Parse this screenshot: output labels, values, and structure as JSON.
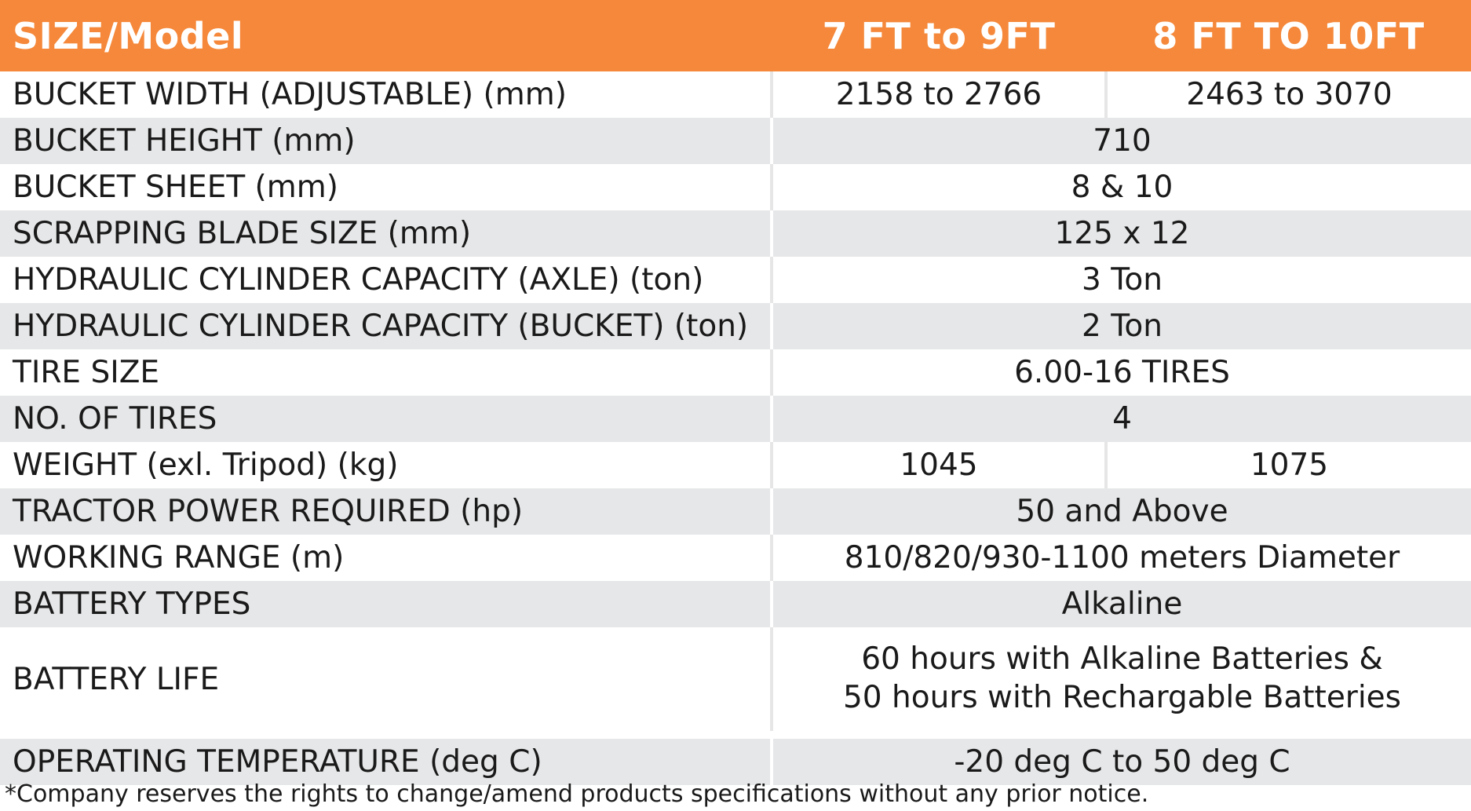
{
  "header": {
    "label": "SIZE/Model",
    "models": [
      "7 FT to 9FT",
      "8 FT TO 10FT"
    ]
  },
  "rows": [
    {
      "label": "BUCKET WIDTH (ADJUSTABLE) (mm)",
      "values": [
        "2158 to 2766",
        "2463 to 3070"
      ]
    },
    {
      "label": "BUCKET HEIGHT (mm)",
      "value": "710"
    },
    {
      "label": "BUCKET SHEET (mm)",
      "value": "8 & 10"
    },
    {
      "label": "SCRAPPING BLADE SIZE (mm)",
      "value": "125 x 12"
    },
    {
      "label": "HYDRAULIC CYLINDER CAPACITY (AXLE) (ton)",
      "value": "3 Ton"
    },
    {
      "label": "HYDRAULIC CYLINDER CAPACITY (BUCKET) (ton)",
      "value": "2 Ton"
    },
    {
      "label": "TIRE SIZE",
      "value": "6.00-16 TIRES"
    },
    {
      "label": "NO. OF TIRES",
      "value": "4"
    },
    {
      "label": "WEIGHT (exl. Tripod) (kg)",
      "values": [
        "1045",
        "1075"
      ]
    },
    {
      "label": "TRACTOR POWER REQUIRED (hp)",
      "value": "50 and Above"
    },
    {
      "label": "WORKING RANGE (m)",
      "value": "810/820/930-1100 meters Diameter"
    },
    {
      "label": "BATTERY TYPES",
      "value": "Alkaline"
    },
    {
      "label": "BATTERY LIFE",
      "value_lines": [
        "60 hours with Alkaline Batteries &",
        "50 hours with Rechargable Batteries"
      ]
    },
    {
      "label": "OPERATING TEMPERATURE (deg C)",
      "value": "-20 deg C to 50 deg C"
    }
  ],
  "footnote": "*Company reserves the rights to change/amend products specifications without any prior notice.",
  "colors": {
    "header_bg": "#f5883a",
    "header_text": "#ffffff",
    "row_alt_bg": "#e6e7e8"
  }
}
